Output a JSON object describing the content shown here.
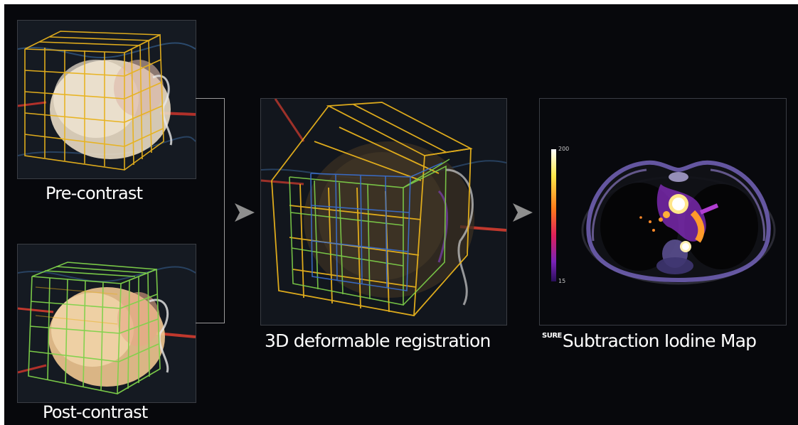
{
  "captions": {
    "pre_contrast": "Pre-contrast",
    "post_contrast": "Post-contrast",
    "registration": "3D deformable registration",
    "iodine_superscript": "SURE",
    "iodine_map": "Subtraction Iodine Map"
  },
  "colorbar": {
    "max_label": "200",
    "min_label": "15"
  },
  "colors": {
    "background": "#07080c",
    "grid_yellow": "#e8b21c",
    "grid_green": "#7fd24a",
    "grid_blue": "#3a6fd0",
    "connector": "#9a9a9a"
  },
  "icons": {
    "arrow": "chevron-right-icon"
  }
}
